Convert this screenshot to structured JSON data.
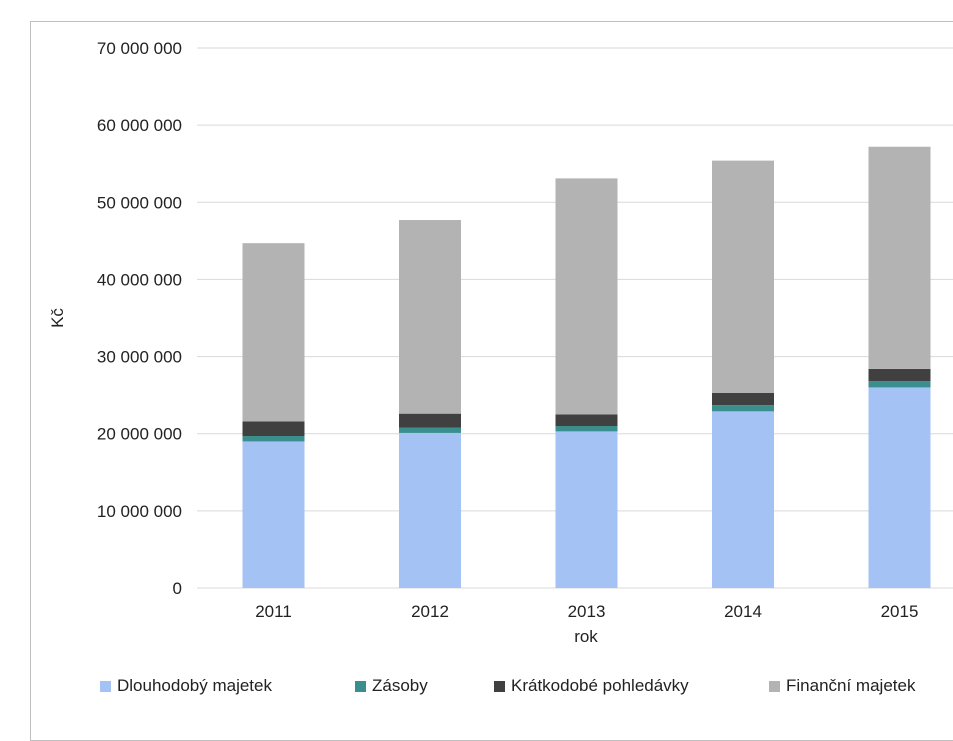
{
  "chart_data": {
    "type": "bar",
    "stacked": true,
    "xlabel": "rok",
    "ylabel": "Kč",
    "ylim": [
      0,
      70000000
    ],
    "yticks": [
      "0",
      "10 000 000",
      "20 000 000",
      "30 000 000",
      "40 000 000",
      "50 000 000",
      "60 000 000",
      "70 000 000"
    ],
    "categories": [
      "2011",
      "2012",
      "2013",
      "2014",
      "2015"
    ],
    "grid": "horizontal",
    "legend_position": "bottom",
    "series": [
      {
        "name": "Dlouhodobý majetek",
        "color": "#a4c2f4",
        "values": [
          19000000,
          20100000,
          20300000,
          22900000,
          26000000
        ]
      },
      {
        "name": "Zásoby",
        "color": "#3a8e8e",
        "values": [
          700000,
          700000,
          700000,
          800000,
          800000
        ]
      },
      {
        "name": "Krátkodobé pohledávky",
        "color": "#404040",
        "values": [
          1900000,
          1800000,
          1500000,
          1600000,
          1600000
        ]
      },
      {
        "name": "Finanční majetek",
        "color": "#b3b3b3",
        "values": [
          23100000,
          25100000,
          30600000,
          30100000,
          28800000
        ]
      }
    ]
  }
}
